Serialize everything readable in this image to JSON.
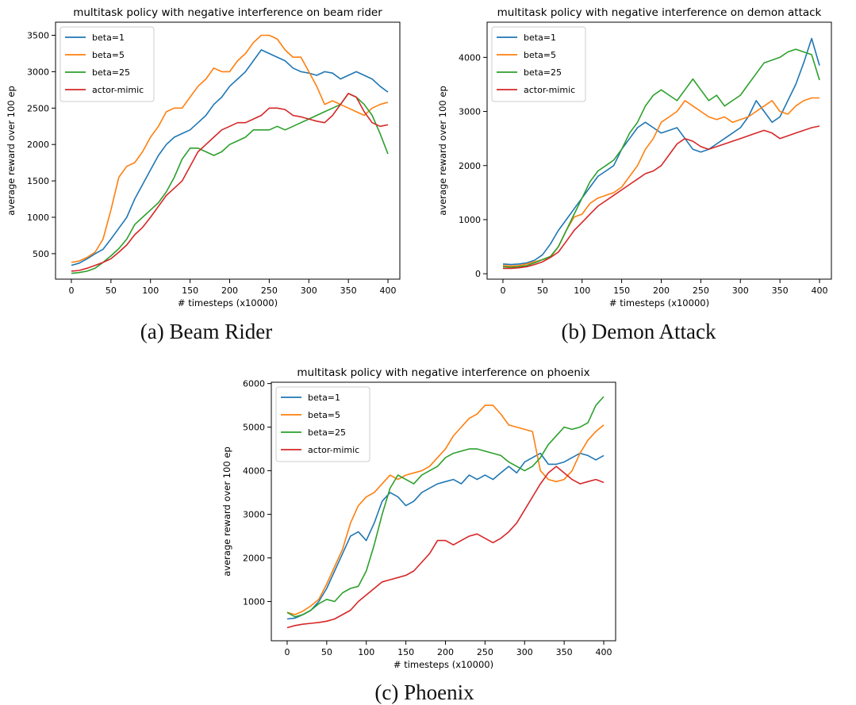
{
  "colors": {
    "beta1": "#1f77b4",
    "beta5": "#ff7f0e",
    "beta25": "#2ca02c",
    "mimic": "#d62728"
  },
  "chart_data": [
    {
      "type": "line",
      "title": "multitask policy with negative interference on beam rider",
      "caption": "(a) Beam Rider",
      "xlabel": "# timesteps (x10000)",
      "ylabel": "average reward over 100 ep",
      "xlim": [
        -20,
        415
      ],
      "ylim": [
        150,
        3680
      ],
      "xticks": [
        0,
        50,
        100,
        150,
        200,
        250,
        300,
        350,
        400
      ],
      "yticks": [
        500,
        1000,
        1500,
        2000,
        2500,
        3000,
        3500
      ],
      "legend_position": "top-left",
      "grid": false,
      "x": [
        0,
        10,
        20,
        30,
        40,
        50,
        60,
        70,
        80,
        90,
        100,
        110,
        120,
        130,
        140,
        150,
        160,
        170,
        180,
        190,
        200,
        210,
        220,
        230,
        240,
        250,
        260,
        270,
        280,
        290,
        300,
        310,
        320,
        330,
        340,
        350,
        360,
        370,
        380,
        390,
        400
      ],
      "series": [
        {
          "name": "beta=1",
          "color": "beta1",
          "values": [
            340,
            370,
            430,
            500,
            560,
            700,
            850,
            1000,
            1250,
            1450,
            1650,
            1850,
            2000,
            2100,
            2150,
            2200,
            2300,
            2400,
            2550,
            2650,
            2800,
            2900,
            3000,
            3150,
            3300,
            3250,
            3200,
            3150,
            3050,
            3000,
            2980,
            2950,
            3000,
            2980,
            2900,
            2950,
            3000,
            2950,
            2900,
            2800,
            2720
          ]
        },
        {
          "name": "beta=5",
          "color": "beta5",
          "values": [
            380,
            400,
            450,
            520,
            700,
            1100,
            1550,
            1700,
            1750,
            1900,
            2100,
            2250,
            2450,
            2500,
            2500,
            2650,
            2800,
            2900,
            3050,
            3000,
            3000,
            3150,
            3250,
            3400,
            3500,
            3500,
            3450,
            3300,
            3200,
            3200,
            3000,
            2800,
            2550,
            2600,
            2550,
            2500,
            2450,
            2400,
            2500,
            2550,
            2580
          ]
        },
        {
          "name": "beta=25",
          "color": "beta25",
          "values": [
            230,
            240,
            260,
            300,
            380,
            470,
            570,
            700,
            900,
            1000,
            1100,
            1200,
            1350,
            1550,
            1800,
            1950,
            1950,
            1900,
            1850,
            1900,
            2000,
            2050,
            2100,
            2200,
            2200,
            2200,
            2250,
            2200,
            2250,
            2300,
            2350,
            2400,
            2450,
            2500,
            2550,
            2700,
            2650,
            2550,
            2400,
            2150,
            1870
          ]
        },
        {
          "name": "actor-mimic",
          "color": "mimic",
          "values": [
            260,
            270,
            300,
            340,
            380,
            430,
            520,
            620,
            760,
            860,
            1000,
            1150,
            1300,
            1400,
            1500,
            1700,
            1900,
            2000,
            2100,
            2200,
            2250,
            2300,
            2300,
            2350,
            2400,
            2500,
            2500,
            2480,
            2400,
            2380,
            2350,
            2320,
            2300,
            2400,
            2550,
            2700,
            2650,
            2450,
            2300,
            2250,
            2270
          ]
        }
      ]
    },
    {
      "type": "line",
      "title": "multitask policy with negative interference on demon attack",
      "caption": "(b) Demon Attack",
      "xlabel": "# timesteps (x10000)",
      "ylabel": "average reward over 100 ep",
      "xlim": [
        -20,
        415
      ],
      "ylim": [
        -100,
        4650
      ],
      "xticks": [
        0,
        50,
        100,
        150,
        200,
        250,
        300,
        350,
        400
      ],
      "yticks": [
        0,
        1000,
        2000,
        3000,
        4000
      ],
      "legend_position": "top-left",
      "grid": false,
      "x": [
        0,
        10,
        20,
        30,
        40,
        50,
        60,
        70,
        80,
        90,
        100,
        110,
        120,
        130,
        140,
        150,
        160,
        170,
        180,
        190,
        200,
        210,
        220,
        230,
        240,
        250,
        260,
        270,
        280,
        290,
        300,
        310,
        320,
        330,
        340,
        350,
        360,
        370,
        380,
        390,
        400
      ],
      "series": [
        {
          "name": "beta=1",
          "color": "beta1",
          "values": [
            180,
            170,
            180,
            200,
            250,
            350,
            550,
            800,
            1000,
            1200,
            1400,
            1600,
            1800,
            1900,
            2000,
            2300,
            2500,
            2700,
            2800,
            2700,
            2600,
            2650,
            2700,
            2500,
            2300,
            2250,
            2300,
            2400,
            2500,
            2600,
            2700,
            2900,
            3200,
            3000,
            2800,
            2900,
            3200,
            3500,
            3900,
            4350,
            3850
          ]
        },
        {
          "name": "beta=5",
          "color": "beta5",
          "values": [
            150,
            140,
            150,
            180,
            220,
            260,
            300,
            500,
            800,
            1050,
            1100,
            1300,
            1400,
            1450,
            1500,
            1600,
            1800,
            2000,
            2300,
            2500,
            2800,
            2900,
            3000,
            3200,
            3100,
            3000,
            2900,
            2850,
            2900,
            2800,
            2850,
            2900,
            3000,
            3100,
            3200,
            3000,
            2950,
            3100,
            3200,
            3250,
            3250
          ]
        },
        {
          "name": "beta=25",
          "color": "beta25",
          "values": [
            130,
            120,
            130,
            150,
            200,
            260,
            320,
            500,
            800,
            1100,
            1400,
            1700,
            1900,
            2000,
            2100,
            2300,
            2600,
            2800,
            3100,
            3300,
            3400,
            3300,
            3200,
            3400,
            3600,
            3400,
            3200,
            3300,
            3100,
            3200,
            3300,
            3500,
            3700,
            3900,
            3950,
            4000,
            4100,
            4150,
            4100,
            4050,
            3580
          ]
        },
        {
          "name": "actor-mimic",
          "color": "mimic",
          "values": [
            100,
            100,
            110,
            130,
            170,
            220,
            300,
            400,
            600,
            800,
            950,
            1100,
            1250,
            1350,
            1450,
            1550,
            1650,
            1750,
            1850,
            1900,
            2000,
            2200,
            2400,
            2500,
            2450,
            2350,
            2300,
            2350,
            2400,
            2450,
            2500,
            2550,
            2600,
            2650,
            2600,
            2500,
            2550,
            2600,
            2650,
            2700,
            2730
          ]
        }
      ]
    },
    {
      "type": "line",
      "title": "multitask policy with negative interference on phoenix",
      "caption": "(c) Phoenix",
      "xlabel": "# timesteps (x10000)",
      "ylabel": "average reward over 100 ep",
      "xlim": [
        -20,
        415
      ],
      "ylim": [
        100,
        6030
      ],
      "xticks": [
        0,
        50,
        100,
        150,
        200,
        250,
        300,
        350,
        400
      ],
      "yticks": [
        1000,
        2000,
        3000,
        4000,
        5000,
        6000
      ],
      "legend_position": "top-left",
      "grid": false,
      "x": [
        0,
        10,
        20,
        30,
        40,
        50,
        60,
        70,
        80,
        90,
        100,
        110,
        120,
        130,
        140,
        150,
        160,
        170,
        180,
        190,
        200,
        210,
        220,
        230,
        240,
        250,
        260,
        270,
        280,
        290,
        300,
        310,
        320,
        330,
        340,
        350,
        360,
        370,
        380,
        390,
        400
      ],
      "series": [
        {
          "name": "beta=1",
          "color": "beta1",
          "values": [
            600,
            620,
            700,
            800,
            1000,
            1300,
            1700,
            2100,
            2500,
            2600,
            2400,
            2800,
            3300,
            3500,
            3400,
            3200,
            3300,
            3500,
            3600,
            3700,
            3750,
            3800,
            3700,
            3900,
            3800,
            3900,
            3800,
            3950,
            4100,
            3950,
            4200,
            4300,
            4400,
            4150,
            4150,
            4200,
            4300,
            4400,
            4350,
            4250,
            4350
          ]
        },
        {
          "name": "beta=5",
          "color": "beta5",
          "values": [
            750,
            700,
            780,
            900,
            1050,
            1400,
            1800,
            2200,
            2800,
            3200,
            3400,
            3500,
            3700,
            3900,
            3800,
            3900,
            3950,
            4000,
            4100,
            4300,
            4500,
            4800,
            5000,
            5200,
            5300,
            5500,
            5500,
            5300,
            5050,
            5000,
            4950,
            4900,
            4000,
            3800,
            3750,
            3800,
            4000,
            4400,
            4700,
            4900,
            5050
          ]
        },
        {
          "name": "beta=25",
          "color": "beta25",
          "values": [
            750,
            650,
            700,
            800,
            950,
            1050,
            1000,
            1200,
            1300,
            1350,
            1700,
            2300,
            3000,
            3600,
            3900,
            3800,
            3700,
            3900,
            4000,
            4100,
            4300,
            4400,
            4450,
            4500,
            4500,
            4450,
            4400,
            4350,
            4200,
            4100,
            4000,
            4100,
            4300,
            4600,
            4800,
            5000,
            4950,
            5000,
            5100,
            5500,
            5700
          ]
        },
        {
          "name": "actor-mimic",
          "color": "mimic",
          "values": [
            400,
            450,
            480,
            500,
            520,
            550,
            600,
            700,
            800,
            1000,
            1150,
            1300,
            1450,
            1500,
            1550,
            1600,
            1700,
            1900,
            2100,
            2400,
            2400,
            2300,
            2400,
            2500,
            2550,
            2450,
            2350,
            2450,
            2600,
            2800,
            3100,
            3400,
            3700,
            3950,
            4100,
            3950,
            3800,
            3700,
            3750,
            3800,
            3730
          ]
        }
      ]
    }
  ]
}
